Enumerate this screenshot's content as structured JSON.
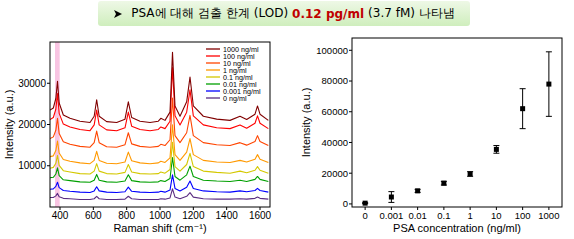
{
  "header": {
    "text": "PSA에 대해 검출 한계 (LOD)",
    "highlight": "0.12 pg/ml",
    "note": "(3.7 fM) 나타냄"
  },
  "chart_data": [
    {
      "type": "line",
      "x_label": "Raman shift (cm⁻¹)",
      "y_label": "Intensity (a.u.)",
      "xlim": [
        340,
        1660
      ],
      "ylim": [
        0,
        40000
      ],
      "xticks": [
        400,
        600,
        800,
        1000,
        1200,
        1400,
        1600
      ],
      "yticks": [
        10000,
        20000,
        30000
      ],
      "legend": "top-right",
      "band": [
        370,
        398
      ],
      "x": [
        340,
        360,
        375,
        385,
        395,
        420,
        460,
        520,
        580,
        605,
        620,
        635,
        680,
        740,
        790,
        810,
        830,
        880,
        940,
        990,
        1005,
        1030,
        1060,
        1075,
        1090,
        1120,
        1160,
        1180,
        1200,
        1260,
        1340,
        1420,
        1480,
        1520,
        1570,
        1585,
        1600,
        1650
      ],
      "series": [
        {
          "name": "1000 ng/ml",
          "color": "#800000",
          "values": [
            23500,
            24000,
            26300,
            30500,
            25200,
            22300,
            21500,
            20800,
            20500,
            22000,
            26000,
            22000,
            20700,
            20500,
            21300,
            25500,
            21700,
            20800,
            20500,
            20800,
            21500,
            21000,
            23000,
            37500,
            24500,
            22000,
            25500,
            31500,
            24500,
            22000,
            21300,
            21000,
            22000,
            21200,
            22500,
            24500,
            22500,
            21000
          ]
        },
        {
          "name": "100 ng/ml",
          "color": "#ff0000",
          "values": [
            21200,
            21700,
            23700,
            27500,
            22700,
            20100,
            19400,
            18800,
            18500,
            19900,
            23500,
            19900,
            18700,
            18500,
            19200,
            23000,
            19600,
            18800,
            18500,
            18800,
            19400,
            19000,
            20800,
            33800,
            22100,
            19900,
            23000,
            28400,
            22100,
            19900,
            19200,
            19000,
            19900,
            19100,
            20300,
            22100,
            20300,
            19000
          ]
        },
        {
          "name": "10 ng/ml",
          "color": "#ff4500",
          "values": [
            16600,
            17000,
            18600,
            21500,
            17800,
            15800,
            15200,
            14700,
            14500,
            15600,
            18400,
            15600,
            14600,
            14500,
            15100,
            18000,
            15300,
            14700,
            14500,
            14700,
            15200,
            14900,
            16300,
            26400,
            17300,
            15600,
            18000,
            22200,
            17300,
            15600,
            15100,
            14900,
            15600,
            15000,
            15900,
            17300,
            15900,
            14900
          ]
        },
        {
          "name": "1 ng/ml",
          "color": "#ff9900",
          "values": [
            12200,
            12400,
            13700,
            16000,
            13100,
            11500,
            11100,
            10700,
            10500,
            11300,
            13500,
            11300,
            10600,
            10500,
            10900,
            13300,
            11200,
            10700,
            10500,
            10700,
            11100,
            10800,
            11900,
            19900,
            12700,
            11300,
            13300,
            16600,
            12700,
            11300,
            10900,
            10800,
            11300,
            10900,
            11600,
            12700,
            11600,
            10800
          ]
        },
        {
          "name": "0.1 ng/ml",
          "color": "#d4c800",
          "values": [
            9400,
            9600,
            10600,
            12500,
            10100,
            8800,
            8500,
            8100,
            8000,
            8700,
            10500,
            8700,
            8100,
            8000,
            8400,
            10300,
            8500,
            8100,
            8000,
            8100,
            8500,
            8200,
            9100,
            15700,
            9800,
            8700,
            10300,
            13000,
            9800,
            8700,
            8400,
            8200,
            8700,
            8300,
            8900,
            9800,
            8900,
            8200
          ]
        },
        {
          "name": "0.01 ng/ml",
          "color": "#00a000",
          "values": [
            7100,
            7200,
            8000,
            9500,
            7600,
            6600,
            6400,
            6100,
            6000,
            6500,
            7900,
            6500,
            6100,
            6000,
            6300,
            7800,
            6400,
            6100,
            6000,
            6100,
            6400,
            6200,
            6900,
            12000,
            7400,
            6500,
            7800,
            9900,
            7400,
            6500,
            6300,
            6200,
            6500,
            6200,
            6700,
            7400,
            6700,
            6200
          ]
        },
        {
          "name": "0.001 ng/ml",
          "color": "#0000ff",
          "values": [
            4300,
            4400,
            5000,
            6000,
            4700,
            4000,
            3800,
            3600,
            3500,
            3900,
            4900,
            3900,
            3600,
            3500,
            3700,
            4800,
            3800,
            3600,
            3500,
            3600,
            3800,
            3600,
            4100,
            7800,
            4500,
            3900,
            4800,
            6300,
            4500,
            3900,
            3700,
            3600,
            3900,
            3700,
            4000,
            4500,
            4000,
            3600
          ]
        },
        {
          "name": "0 ng/ml",
          "color": "#5a2d82",
          "values": [
            2300,
            2300,
            2700,
            3300,
            2500,
            2100,
            2000,
            1800,
            1800,
            2000,
            2600,
            2000,
            1800,
            1800,
            1900,
            2600,
            2000,
            1800,
            1800,
            1800,
            2000,
            1900,
            2200,
            4400,
            2400,
            2000,
            2600,
            3500,
            2400,
            2000,
            1900,
            1900,
            2000,
            1900,
            2100,
            2400,
            2100,
            1900
          ]
        }
      ]
    },
    {
      "type": "scatter",
      "x_label": "PSA concentration (ng/ml)",
      "y_label": "Intensity (a.u.)",
      "categories": [
        "0",
        "0.001",
        "0.01",
        "0.1",
        "1",
        "10",
        "100",
        "1000"
      ],
      "values": [
        500,
        4500,
        8500,
        13500,
        19500,
        35500,
        62000,
        78000
      ],
      "errors": [
        300,
        3500,
        1000,
        1200,
        1500,
        2500,
        13000,
        21000
      ],
      "ylim": [
        -2000,
        108000
      ],
      "yticks": [
        0,
        20000,
        40000,
        60000,
        80000,
        100000
      ],
      "color": "#000000",
      "marker": "square"
    }
  ]
}
